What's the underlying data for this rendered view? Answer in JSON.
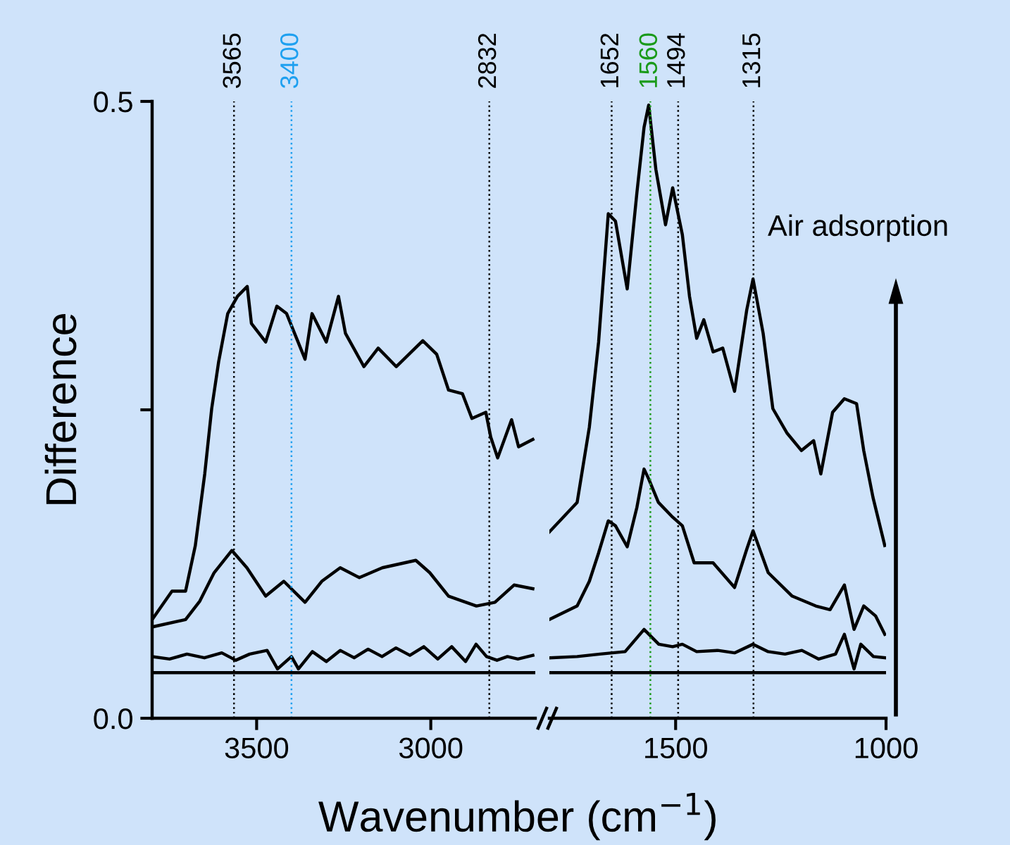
{
  "chart_data": [
    {
      "type": "line",
      "ylabel": "Difference",
      "xlabel": "Wavenumber (cm$^{−1}$)",
      "xlim": [
        3800,
        2700
      ],
      "xticks": [
        3500,
        3000
      ],
      "ylim": [
        0.0,
        0.5
      ],
      "yticks": [
        {
          "value": 0,
          "label": "0.0"
        },
        {
          "value": 0.25,
          "label": null
        },
        0.5
      ],
      "line_style": "solid",
      "series": [
        {
          "color": "#000000",
          "x": [
            3800,
            3743,
            3704,
            3676,
            3649,
            3629,
            3609,
            3583,
            3555,
            3527,
            3515,
            3474,
            3442,
            3414,
            3361,
            3341,
            3300,
            3265,
            3245,
            3192,
            3151,
            3099,
            3023,
            2983,
            2949,
            2909,
            2882,
            2842,
            2828,
            2808,
            2768,
            2748,
            2707
          ],
          "values": [
            0.08,
            0.103,
            0.103,
            0.14,
            0.198,
            0.251,
            0.289,
            0.328,
            0.342,
            0.35,
            0.32,
            0.305,
            0.334,
            0.328,
            0.291,
            0.328,
            0.305,
            0.342,
            0.312,
            0.285,
            0.3,
            0.285,
            0.306,
            0.295,
            0.266,
            0.263,
            0.243,
            0.248,
            0.228,
            0.211,
            0.242,
            0.22,
            0.226
          ]
        },
        {
          "color": "#000000",
          "x": [
            3800,
            3704,
            3663,
            3622,
            3571,
            3528,
            3474,
            3422,
            3361,
            3313,
            3260,
            3205,
            3139,
            3043,
            3003,
            2949,
            2869,
            2816,
            2761,
            2707
          ],
          "values": [
            0.074,
            0.08,
            0.095,
            0.118,
            0.136,
            0.122,
            0.099,
            0.111,
            0.094,
            0.111,
            0.122,
            0.114,
            0.122,
            0.128,
            0.118,
            0.099,
            0.091,
            0.094,
            0.108,
            0.105
          ]
        },
        {
          "color": "#000000",
          "x": [
            3800,
            3750,
            3700,
            3650,
            3600,
            3560,
            3520,
            3470,
            3440,
            3400,
            3380,
            3340,
            3300,
            3260,
            3220,
            3180,
            3140,
            3100,
            3060,
            3020,
            2980,
            2940,
            2900,
            2870,
            2840,
            2810,
            2780,
            2750,
            2707
          ],
          "values": [
            0.05,
            0.048,
            0.052,
            0.049,
            0.053,
            0.047,
            0.052,
            0.055,
            0.04,
            0.05,
            0.04,
            0.054,
            0.046,
            0.055,
            0.049,
            0.056,
            0.05,
            0.057,
            0.051,
            0.058,
            0.048,
            0.058,
            0.046,
            0.06,
            0.05,
            0.047,
            0.05,
            0.048,
            0.051
          ]
        }
      ],
      "ref_lines": [
        {
          "axis": "x",
          "value": 3565,
          "label": "3565",
          "color": "#000000",
          "line_style": "dotted"
        },
        {
          "axis": "x",
          "value": 3400,
          "label": "3400",
          "color": "#1ea0f0",
          "line_style": "dotted"
        },
        {
          "axis": "x",
          "value": 2832,
          "label": "2832",
          "color": "#000000",
          "line_style": "dotted"
        },
        {
          "axis": "y",
          "value": 0.037,
          "color": "#000000",
          "line_style": "solid"
        }
      ]
    },
    {
      "type": "line",
      "xlim": [
        1800,
        1000
      ],
      "xticks": [
        1500,
        1000
      ],
      "ylim": [
        0.0,
        0.5
      ],
      "tick_labels": "x",
      "line_style": "solid",
      "annotations": [
        "Air adsorption"
      ],
      "series": [
        {
          "color": "#000000",
          "x": [
            1800,
            1734,
            1705,
            1683,
            1660,
            1643,
            1615,
            1592,
            1575,
            1564,
            1547,
            1524,
            1507,
            1484,
            1467,
            1450,
            1433,
            1411,
            1388,
            1360,
            1331,
            1316,
            1292,
            1269,
            1235,
            1201,
            1172,
            1155,
            1127,
            1099,
            1070,
            1053,
            1031,
            1003
          ],
          "values": [
            0.151,
            0.175,
            0.236,
            0.305,
            0.409,
            0.403,
            0.348,
            0.426,
            0.479,
            0.497,
            0.445,
            0.4,
            0.43,
            0.392,
            0.342,
            0.308,
            0.323,
            0.297,
            0.3,
            0.265,
            0.331,
            0.356,
            0.312,
            0.251,
            0.231,
            0.217,
            0.225,
            0.198,
            0.248,
            0.259,
            0.255,
            0.217,
            0.179,
            0.14
          ]
        },
        {
          "color": "#000000",
          "x": [
            1800,
            1734,
            1705,
            1683,
            1660,
            1643,
            1615,
            1592,
            1575,
            1564,
            1541,
            1507,
            1484,
            1456,
            1411,
            1360,
            1331,
            1316,
            1280,
            1223,
            1167,
            1133,
            1099,
            1076,
            1053,
            1025,
            1003
          ],
          "values": [
            0.08,
            0.091,
            0.111,
            0.134,
            0.16,
            0.156,
            0.139,
            0.171,
            0.202,
            0.194,
            0.175,
            0.163,
            0.156,
            0.126,
            0.126,
            0.106,
            0.137,
            0.152,
            0.118,
            0.099,
            0.091,
            0.088,
            0.108,
            0.072,
            0.091,
            0.083,
            0.068
          ]
        },
        {
          "color": "#000000",
          "x": [
            1800,
            1734,
            1680,
            1620,
            1575,
            1540,
            1507,
            1484,
            1450,
            1400,
            1360,
            1316,
            1280,
            1240,
            1200,
            1160,
            1120,
            1099,
            1076,
            1060,
            1030,
            1003
          ],
          "values": [
            0.049,
            0.05,
            0.052,
            0.054,
            0.072,
            0.06,
            0.058,
            0.06,
            0.054,
            0.055,
            0.053,
            0.06,
            0.054,
            0.052,
            0.055,
            0.048,
            0.052,
            0.068,
            0.04,
            0.06,
            0.05,
            0.049
          ]
        }
      ],
      "ref_lines": [
        {
          "axis": "x",
          "value": 1652,
          "label": "1652",
          "color": "#000000",
          "line_style": "dotted"
        },
        {
          "axis": "x",
          "value": 1560,
          "label": "1560",
          "color": "#1a9a1a",
          "line_style": "dotted"
        },
        {
          "axis": "x",
          "value": 1494,
          "label": "1494",
          "color": "#000000",
          "line_style": "dotted"
        },
        {
          "axis": "x",
          "value": 1315,
          "label": "1315",
          "color": "#000000",
          "line_style": "dotted"
        },
        {
          "axis": "y",
          "value": 0.037,
          "color": "#000000",
          "line_style": "solid"
        }
      ]
    }
  ]
}
